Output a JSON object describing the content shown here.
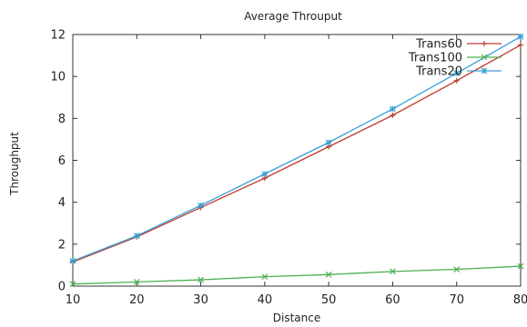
{
  "chart_data": {
    "type": "line",
    "title": "Average Throuput",
    "xlabel": "Distance",
    "ylabel": "Throughput",
    "x": [
      10,
      20,
      30,
      40,
      50,
      60,
      70,
      80
    ],
    "xlim": [
      10,
      80
    ],
    "ylim": [
      0,
      12
    ],
    "xticks": [
      "10",
      "20",
      "30",
      "40",
      "50",
      "60",
      "70",
      "80"
    ],
    "yticks": [
      "0",
      "2",
      "4",
      "6",
      "8",
      "10",
      "12"
    ],
    "grid": false,
    "legend_position": "top-right",
    "series": [
      {
        "name": "Trans60",
        "values": [
          1.15,
          2.35,
          3.75,
          5.15,
          6.65,
          8.15,
          9.8,
          11.5
        ],
        "color": "#c0392b",
        "marker": "plus"
      },
      {
        "name": "Trans100",
        "values": [
          0.1,
          0.2,
          0.3,
          0.45,
          0.55,
          0.7,
          0.8,
          0.95
        ],
        "color": "#4caf50",
        "marker": "cross"
      },
      {
        "name": "Trans20",
        "values": [
          1.2,
          2.4,
          3.85,
          5.35,
          6.85,
          8.45,
          10.15,
          11.9
        ],
        "color": "#3a9fd6",
        "marker": "star"
      }
    ]
  }
}
